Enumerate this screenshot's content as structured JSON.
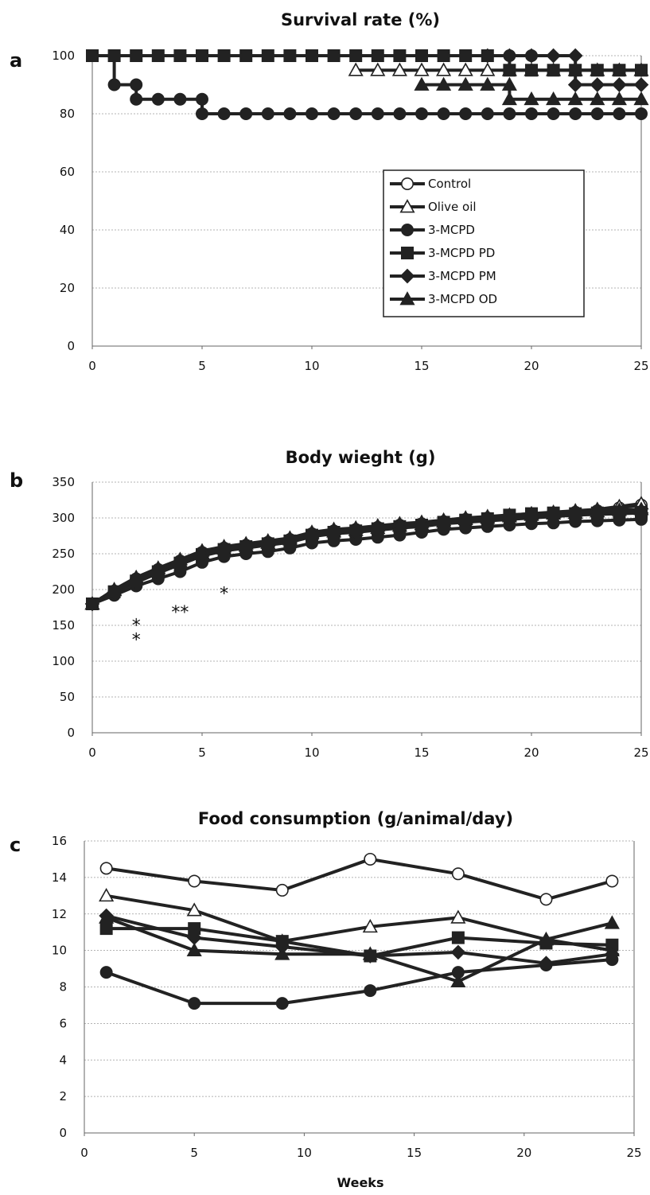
{
  "chart_data": [
    {
      "panel": "a",
      "type": "line",
      "step": true,
      "title": "Survival rate (%)",
      "xlabel": "",
      "ylabel": "",
      "xlim": [
        0,
        25
      ],
      "ylim": [
        0,
        100
      ],
      "xticks": [
        0,
        5,
        10,
        15,
        20,
        25
      ],
      "yticks": [
        0,
        20,
        40,
        60,
        80,
        100
      ],
      "grid": true,
      "legend_position": "center-right",
      "series": [
        {
          "name": "Control",
          "marker": "circle-open",
          "x": [
            0,
            1,
            2,
            3,
            4,
            5,
            6,
            7,
            8,
            9,
            10,
            11,
            12,
            13,
            14,
            15,
            16,
            17,
            18,
            19,
            20
          ],
          "y": [
            100,
            100,
            100,
            100,
            100,
            100,
            100,
            100,
            100,
            100,
            100,
            100,
            100,
            100,
            100,
            100,
            100,
            100,
            100,
            100,
            100
          ]
        },
        {
          "name": "Olive oil",
          "marker": "triangle-open",
          "x": [
            12,
            13,
            14,
            15,
            16,
            17,
            18,
            19,
            20,
            21,
            22,
            23,
            24,
            25
          ],
          "y": [
            95,
            95,
            95,
            95,
            95,
            95,
            95,
            95,
            95,
            95,
            95,
            95,
            95,
            95
          ]
        },
        {
          "name": "3-MCPD",
          "marker": "circle-filled",
          "x": [
            0,
            1,
            2,
            2,
            3,
            4,
            5,
            5,
            6,
            7,
            8,
            9,
            10,
            11,
            12,
            13,
            14,
            15,
            16,
            17,
            18,
            19,
            20,
            21,
            22,
            23,
            24,
            25
          ],
          "y": [
            100,
            90,
            90,
            85,
            85,
            85,
            85,
            80,
            80,
            80,
            80,
            80,
            80,
            80,
            80,
            80,
            80,
            80,
            80,
            80,
            80,
            80,
            80,
            80,
            80,
            80,
            80,
            80
          ]
        },
        {
          "name": "3-MCPD PD",
          "marker": "square-filled",
          "x": [
            0,
            1,
            2,
            3,
            4,
            5,
            6,
            7,
            8,
            9,
            10,
            11,
            12,
            13,
            14,
            15,
            16,
            17,
            18,
            19,
            20,
            21,
            22,
            23,
            24,
            25
          ],
          "y": [
            100,
            100,
            100,
            100,
            100,
            100,
            100,
            100,
            100,
            100,
            100,
            100,
            100,
            100,
            100,
            100,
            100,
            100,
            100,
            95,
            95,
            95,
            95,
            95,
            95,
            95
          ]
        },
        {
          "name": "3-MCPD PM",
          "marker": "diamond-filled",
          "x": [
            18,
            19,
            20,
            21,
            22,
            22,
            23,
            24,
            25
          ],
          "y": [
            100,
            100,
            100,
            100,
            100,
            90,
            90,
            90,
            90
          ]
        },
        {
          "name": "3-MCPD OD",
          "marker": "triangle-filled",
          "x": [
            15,
            16,
            17,
            18,
            19,
            19,
            20,
            21,
            22,
            23,
            24,
            25
          ],
          "y": [
            90,
            90,
            90,
            90,
            90,
            85,
            85,
            85,
            85,
            85,
            85,
            85
          ]
        }
      ]
    },
    {
      "panel": "b",
      "type": "line",
      "title": "Body wieght (g)",
      "xlabel": "",
      "ylabel": "",
      "xlim": [
        0,
        25
      ],
      "ylim": [
        0,
        350
      ],
      "xticks": [
        0,
        5,
        10,
        15,
        20,
        25
      ],
      "yticks": [
        0,
        50,
        100,
        150,
        200,
        250,
        300,
        350
      ],
      "grid": true,
      "series": [
        {
          "name": "Control",
          "marker": "circle-open",
          "x": [
            0,
            1,
            2,
            3,
            4,
            5,
            6,
            7,
            8,
            9,
            10,
            11,
            12,
            13,
            14,
            15,
            16,
            17,
            18,
            19,
            20,
            21,
            22,
            23,
            24,
            25
          ],
          "y": [
            180,
            198,
            215,
            228,
            240,
            252,
            258,
            262,
            266,
            270,
            278,
            282,
            284,
            287,
            290,
            292,
            295,
            298,
            300,
            302,
            304,
            306,
            308,
            310,
            314,
            318
          ]
        },
        {
          "name": "Olive oil",
          "marker": "triangle-open",
          "x": [
            0,
            1,
            2,
            3,
            4,
            5,
            6,
            7,
            8,
            9,
            10,
            11,
            12,
            13,
            14,
            15,
            16,
            17,
            18,
            19,
            20,
            21,
            22,
            23,
            24,
            25
          ],
          "y": [
            180,
            200,
            217,
            230,
            242,
            254,
            260,
            264,
            268,
            272,
            280,
            284,
            286,
            289,
            292,
            294,
            297,
            300,
            302,
            304,
            306,
            308,
            310,
            312,
            316,
            320
          ]
        },
        {
          "name": "3-MCPD",
          "marker": "circle-filled",
          "x": [
            0,
            1,
            2,
            3,
            4,
            5,
            6,
            7,
            8,
            9,
            10,
            11,
            12,
            13,
            14,
            15,
            16,
            17,
            18,
            19,
            20,
            21,
            22,
            23,
            24,
            25
          ],
          "y": [
            180,
            192,
            205,
            215,
            225,
            238,
            246,
            250,
            253,
            258,
            265,
            268,
            270,
            273,
            276,
            280,
            284,
            286,
            288,
            290,
            292,
            293,
            295,
            296,
            297,
            298
          ]
        },
        {
          "name": "3-MCPD PD",
          "marker": "square-filled",
          "x": [
            0,
            1,
            2,
            3,
            4,
            5,
            6,
            7,
            8,
            9,
            10,
            11,
            12,
            13,
            14,
            15,
            16,
            17,
            18,
            19,
            20,
            21,
            22,
            23,
            24,
            25
          ],
          "y": [
            180,
            197,
            212,
            225,
            237,
            249,
            256,
            260,
            264,
            268,
            276,
            280,
            282,
            285,
            288,
            290,
            294,
            297,
            299,
            304,
            306,
            307,
            306,
            307,
            308,
            308
          ]
        },
        {
          "name": "3-MCPD PM",
          "marker": "diamond-filled",
          "x": [
            0,
            1,
            2,
            3,
            4,
            5,
            6,
            7,
            8,
            9,
            10,
            11,
            12,
            13,
            14,
            15,
            16,
            17,
            18,
            19,
            20,
            21,
            22,
            23,
            24,
            25
          ],
          "y": [
            180,
            196,
            210,
            223,
            235,
            247,
            254,
            258,
            262,
            266,
            274,
            278,
            280,
            283,
            286,
            288,
            292,
            294,
            296,
            298,
            300,
            302,
            304,
            305,
            306,
            307
          ]
        },
        {
          "name": "3-MCPD OD",
          "marker": "triangle-filled",
          "x": [
            0,
            1,
            2,
            3,
            4,
            5,
            6,
            7,
            8,
            9,
            10,
            11,
            12,
            13,
            14,
            15,
            16,
            17,
            18,
            19,
            20,
            21,
            22,
            23,
            24,
            25
          ],
          "y": [
            180,
            199,
            214,
            227,
            239,
            251,
            257,
            261,
            265,
            270,
            278,
            281,
            283,
            286,
            289,
            291,
            295,
            298,
            300,
            302,
            304,
            306,
            307,
            309,
            311,
            312
          ]
        }
      ],
      "annotations": [
        {
          "text": "*",
          "x": 2,
          "y": 153
        },
        {
          "text": "*",
          "x": 2,
          "y": 133
        },
        {
          "text": "**",
          "x": 4,
          "y": 171
        },
        {
          "text": "*",
          "x": 6,
          "y": 197
        }
      ]
    },
    {
      "panel": "c",
      "type": "line",
      "title": "Food consumption (g/animal/day)",
      "xlabel": "Weeks",
      "ylabel": "",
      "xlim": [
        0,
        25
      ],
      "ylim": [
        0,
        16
      ],
      "xticks": [
        0,
        5,
        10,
        15,
        20,
        25
      ],
      "yticks": [
        0,
        2,
        4,
        6,
        8,
        10,
        12,
        14,
        16
      ],
      "grid": true,
      "series": [
        {
          "name": "Control",
          "marker": "circle-open",
          "x": [
            1,
            5,
            9,
            13,
            17,
            21,
            24
          ],
          "y": [
            14.5,
            13.8,
            13.3,
            15.0,
            14.2,
            12.8,
            13.8
          ]
        },
        {
          "name": "Olive oil",
          "marker": "triangle-open",
          "x": [
            1,
            5,
            9,
            13,
            17,
            21,
            24
          ],
          "y": [
            13.0,
            12.2,
            10.5,
            11.3,
            11.8,
            10.6,
            10.0
          ]
        },
        {
          "name": "3-MCPD",
          "marker": "circle-filled",
          "x": [
            1,
            5,
            9,
            13,
            17,
            21,
            24
          ],
          "y": [
            8.8,
            7.1,
            7.1,
            7.8,
            8.8,
            9.2,
            9.5
          ]
        },
        {
          "name": "3-MCPD PD",
          "marker": "square-filled",
          "x": [
            1,
            5,
            9,
            13,
            17,
            21,
            24
          ],
          "y": [
            11.2,
            11.2,
            10.5,
            9.7,
            10.7,
            10.4,
            10.3
          ]
        },
        {
          "name": "3-MCPD PM",
          "marker": "diamond-filled",
          "x": [
            1,
            5,
            9,
            13,
            17,
            21,
            24
          ],
          "y": [
            11.9,
            10.7,
            10.2,
            9.7,
            9.9,
            9.3,
            9.8
          ]
        },
        {
          "name": "3-MCPD OD",
          "marker": "triangle-filled",
          "x": [
            1,
            5,
            9,
            13,
            17,
            21,
            24
          ],
          "y": [
            11.8,
            10.0,
            9.8,
            9.8,
            8.3,
            10.6,
            11.5
          ]
        }
      ]
    }
  ]
}
